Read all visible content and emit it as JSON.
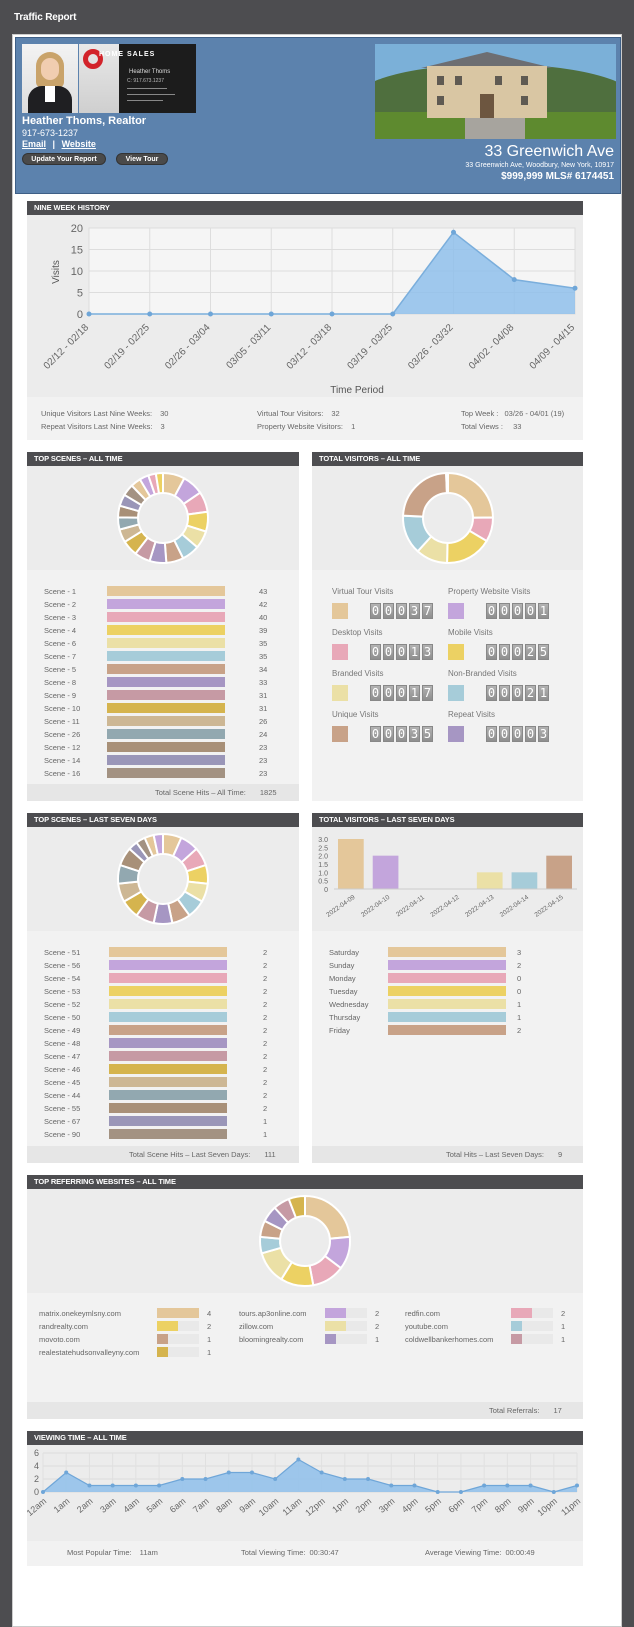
{
  "report_title": "Traffic Report",
  "agent": {
    "name": "Heather Thoms, Realtor",
    "phone": "917-673-1237",
    "email_label": "Email",
    "website_label": "Website",
    "update_button": "Update Your Report",
    "tour_button": "View Tour",
    "brand_word": "HOME SALES",
    "brand_name": "Heather Thoms",
    "brand_phone": "C: 917.673.1237"
  },
  "property": {
    "title": "33 Greenwich Ave",
    "full_address": "33 Greenwich Ave, Woodbury, New York, 10917",
    "price_mls": "$999,999 MLS# 6174451"
  },
  "nine_week": {
    "heading": "NINE WEEK HISTORY",
    "chart_data": {
      "type": "area",
      "xlabel": "Time Period",
      "ylabel": "Visits",
      "ylim": [
        0,
        20
      ],
      "yticks": [
        "0",
        "5",
        "10",
        "15",
        "20"
      ],
      "categories": [
        "02/12 - 02/18",
        "02/19 - 02/25",
        "02/26 - 03/04",
        "03/05 - 03/11",
        "03/12 - 03/18",
        "03/19 - 03/25",
        "03/26 - 03/32",
        "04/02 - 04/08",
        "04/09 - 04/15"
      ],
      "values": [
        0,
        0,
        0,
        0,
        0,
        0,
        19,
        8,
        6
      ],
      "color": "#8fc0eb"
    },
    "stats": [
      {
        "label": "Unique Visitors Last Nine Weeks:",
        "value": "30"
      },
      {
        "label": "Repeat Visitors Last Nine Weeks:",
        "value": "3"
      },
      {
        "label": "Virtual Tour Visitors:",
        "value": "32"
      },
      {
        "label": "Property Website Visitors:",
        "value": "1"
      },
      {
        "label": "Top Week :",
        "value": "03/26 - 04/01 (19)"
      },
      {
        "label": "Total Views :",
        "value": "33"
      }
    ]
  },
  "palette": [
    "#e4c79a",
    "#c3a5dc",
    "#e8a8b8",
    "#ecd163",
    "#ebe0a6",
    "#a6ccd9",
    "#c8a288",
    "#a696c3",
    "#c69aa4",
    "#d5b44e",
    "#cdb794",
    "#92a8b0",
    "#a89078",
    "#9a96b8",
    "#a39282"
  ],
  "top_scenes_all": {
    "heading": "TOP SCENES – ALL TIME",
    "chart_data": {
      "type": "bar",
      "categories": [
        "Scene - 1",
        "Scene - 2",
        "Scene - 3",
        "Scene - 4",
        "Scene - 6",
        "Scene - 7",
        "Scene - 5",
        "Scene - 8",
        "Scene - 9",
        "Scene - 10",
        "Scene - 11",
        "Scene - 26",
        "Scene - 12",
        "Scene - 14",
        "Scene - 16"
      ],
      "values": [
        43,
        42,
        40,
        39,
        35,
        35,
        34,
        33,
        31,
        31,
        26,
        24,
        23,
        23,
        23
      ]
    },
    "donut_values": [
      43,
      42,
      40,
      39,
      35,
      35,
      34,
      33,
      31,
      31,
      26,
      24,
      23,
      23,
      23,
      20,
      18,
      15,
      14
    ],
    "total_label": "Total Scene Hits – All Time:",
    "total_value": "1825"
  },
  "total_visitors_all": {
    "heading": "TOTAL VISITORS – ALL TIME",
    "donut_values": [
      37,
      13,
      25,
      17,
      21,
      35,
      1
    ],
    "donut_colors": [
      "#e4c79a",
      "#e8a8b8",
      "#ecd163",
      "#ebe0a6",
      "#a6ccd9",
      "#c8a288",
      "#c3a5dc"
    ],
    "counters": [
      {
        "label": "Virtual Tour Visits",
        "digits": "00037",
        "color": "#e4c79a"
      },
      {
        "label": "Property Website Visits",
        "digits": "00001",
        "color": "#c3a5dc"
      },
      {
        "label": "Desktop Visits",
        "digits": "00013",
        "color": "#e8a8b8"
      },
      {
        "label": "Mobile Visits",
        "digits": "00025",
        "color": "#ecd163"
      },
      {
        "label": "Branded Visits",
        "digits": "00017",
        "color": "#ebe0a6"
      },
      {
        "label": "Non-Branded Visits",
        "digits": "00021",
        "color": "#a6ccd9"
      },
      {
        "label": "Unique Visits",
        "digits": "00035",
        "color": "#c8a288"
      },
      {
        "label": "Repeat Visits",
        "digits": "00003",
        "color": "#a696c3"
      }
    ]
  },
  "top_scenes_seven": {
    "heading": "TOP SCENES – LAST SEVEN DAYS",
    "chart_data": {
      "type": "bar",
      "categories": [
        "Scene - 51",
        "Scene - 56",
        "Scene - 54",
        "Scene - 53",
        "Scene - 52",
        "Scene - 50",
        "Scene - 49",
        "Scene - 48",
        "Scene - 47",
        "Scene - 46",
        "Scene - 45",
        "Scene - 44",
        "Scene - 55",
        "Scene - 67",
        "Scene - 90"
      ],
      "values": [
        2,
        2,
        2,
        2,
        2,
        2,
        2,
        2,
        2,
        2,
        2,
        2,
        2,
        1,
        1
      ]
    },
    "donut_values": [
      2,
      2,
      2,
      2,
      2,
      2,
      2,
      2,
      2,
      2,
      2,
      2,
      2,
      1,
      1,
      1,
      1
    ],
    "total_label": "Total Scene Hits – Last Seven Days:",
    "total_value": "111"
  },
  "total_visitors_seven": {
    "heading": "TOTAL VISITORS – LAST SEVEN DAYS",
    "chart_data": {
      "type": "bar",
      "categories": [
        "2022-04-09",
        "2022-04-10",
        "2022-04-11",
        "2022-04-12",
        "2022-04-13",
        "2022-04-14",
        "2022-04-15"
      ],
      "values": [
        3,
        2,
        0,
        0,
        1,
        1,
        2
      ],
      "colors": [
        "#e4c79a",
        "#c3a5dc",
        "#e8a8b8",
        "#ecd163",
        "#ebe0a6",
        "#a6ccd9",
        "#c8a288"
      ],
      "ylim": [
        0,
        3
      ],
      "yticks": [
        "0",
        "0.5",
        "1.0",
        "1.5",
        "2.0",
        "2.5",
        "3.0"
      ]
    },
    "days": {
      "categories": [
        "Saturday",
        "Sunday",
        "Monday",
        "Tuesday",
        "Wednesday",
        "Thursday",
        "Friday"
      ],
      "values": [
        3,
        2,
        0,
        0,
        1,
        1,
        2
      ]
    },
    "total_label": "Total Hits – Last Seven Days:",
    "total_value": "9"
  },
  "referring": {
    "heading": "TOP REFERRING WEBSITES – ALL TIME",
    "chart_data": {
      "type": "bar",
      "categories": [
        "matrix.onekeymlsny.com",
        "tours.ap3online.com",
        "redfin.com",
        "randrealty.com",
        "zillow.com",
        "youtube.com",
        "movoto.com",
        "bloomingrealty.com",
        "coldwellbankerhomes.com",
        "realestatehudsonvalleyny.com"
      ],
      "values": [
        4,
        2,
        2,
        2,
        2,
        1,
        1,
        1,
        1,
        1
      ],
      "colors": [
        "#e4c79a",
        "#c3a5dc",
        "#e8a8b8",
        "#ecd163",
        "#ebe0a6",
        "#a6ccd9",
        "#c8a288",
        "#a696c3",
        "#c69aa4",
        "#d5b44e"
      ]
    },
    "total_label": "Total Referrals:",
    "total_value": "17"
  },
  "viewing": {
    "heading": "VIEWING TIME – ALL TIME",
    "chart_data": {
      "type": "area",
      "ylim": [
        0,
        6
      ],
      "yticks": [
        "0",
        "2",
        "4",
        "6"
      ],
      "categories": [
        "12am",
        "1am",
        "2am",
        "3am",
        "4am",
        "5am",
        "6am",
        "7am",
        "8am",
        "9am",
        "10am",
        "11am",
        "12pm",
        "1pm",
        "2pm",
        "3pm",
        "4pm",
        "5pm",
        "6pm",
        "7pm",
        "8pm",
        "9pm",
        "10pm",
        "11pm"
      ],
      "values": [
        0,
        3,
        1,
        1,
        1,
        1,
        2,
        2,
        3,
        3,
        2,
        5,
        3,
        2,
        2,
        1,
        1,
        0,
        0,
        1,
        1,
        1,
        0,
        1
      ]
    },
    "stats": [
      {
        "label": "Most Popular Time:",
        "value": "11am"
      },
      {
        "label": "Total Viewing Time:",
        "value": "00:30:47"
      },
      {
        "label": "Average Viewing Time:",
        "value": "00:00:49"
      }
    ]
  }
}
